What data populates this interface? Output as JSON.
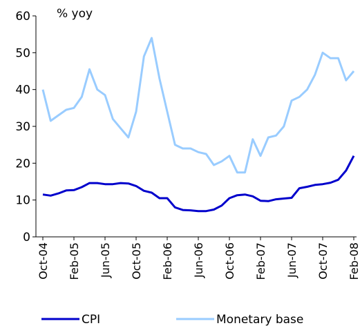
{
  "chart_data": {
    "type": "line",
    "y_axis_label": "% yoy",
    "categories": [
      "Oct-04",
      null,
      null,
      null,
      "Feb-05",
      null,
      null,
      null,
      "Jun-05",
      null,
      null,
      null,
      "Oct-05",
      null,
      null,
      null,
      "Feb-06",
      null,
      null,
      null,
      "Jun-06",
      null,
      null,
      null,
      "Oct-06",
      null,
      null,
      null,
      "Feb-07",
      null,
      null,
      null,
      "Jun-07",
      null,
      null,
      null,
      "Oct-07",
      null,
      null,
      null,
      "Feb-08"
    ],
    "series": [
      {
        "name": "CPI",
        "color": "#0000cc",
        "values": [
          11.5,
          11.2,
          11.8,
          12.6,
          12.7,
          13.5,
          14.6,
          14.6,
          14.3,
          14.3,
          14.6,
          14.5,
          13.8,
          12.5,
          12.0,
          10.5,
          10.5,
          8.0,
          7.3,
          7.2,
          7.0,
          7.0,
          7.4,
          8.5,
          10.5,
          11.3,
          11.5,
          11.0,
          9.8,
          9.7,
          10.2,
          10.4,
          10.6,
          13.2,
          13.6,
          14.1,
          14.3,
          14.7,
          15.5,
          18.0,
          22.0
        ]
      },
      {
        "name": "Monetary base",
        "color": "#99ccff",
        "values": [
          40,
          31.5,
          33,
          34.5,
          35,
          38,
          45.5,
          40,
          38.5,
          32,
          29.5,
          27,
          34,
          49,
          54,
          43,
          34,
          25,
          24,
          24,
          23,
          22.5,
          19.5,
          20.5,
          22,
          17.5,
          17.5,
          26.5,
          22,
          27,
          27.5,
          30,
          37,
          38,
          40,
          44,
          50,
          48.5,
          48.5,
          42.5,
          45
        ]
      }
    ],
    "ylim": [
      0,
      60
    ],
    "yticks": [
      0,
      10,
      20,
      30,
      40,
      50,
      60
    ],
    "grid": false,
    "legend": "bottom"
  }
}
